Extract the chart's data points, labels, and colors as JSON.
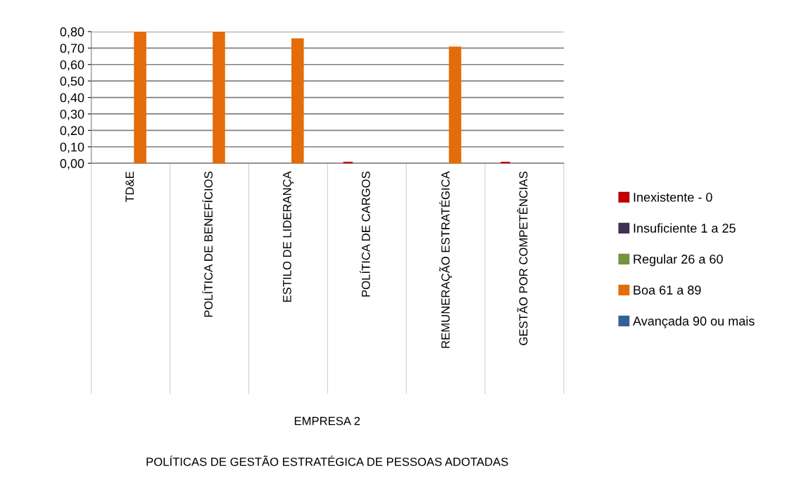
{
  "chart_data": {
    "type": "bar",
    "categories": [
      "TD&E",
      "POLÍTICA DE BENEFÍCIOS",
      "ESTILO DE LIDERANÇA",
      "POLÍTICA DE CARGOS",
      "REMUNERAÇÃO ESTRATÉGICA",
      "GESTÃO POR COMPETÊNCIAS"
    ],
    "series": [
      {
        "name": "Inexistente - 0",
        "color": "#c00000",
        "values": [
          null,
          null,
          null,
          0,
          null,
          0
        ]
      },
      {
        "name": "Insuficiente 1 a 25",
        "color": "#403151",
        "values": [
          null,
          null,
          null,
          null,
          null,
          null
        ]
      },
      {
        "name": "Regular 26 a 60",
        "color": "#77933c",
        "values": [
          null,
          null,
          null,
          null,
          null,
          null
        ]
      },
      {
        "name": "Boa 61 a 89",
        "color": "#e46c0a",
        "values": [
          0.8,
          0.8,
          0.75,
          null,
          0.7,
          null
        ]
      },
      {
        "name": "Avançada 90 ou mais",
        "color": "#376092",
        "values": [
          null,
          null,
          null,
          null,
          null,
          null
        ]
      }
    ],
    "annotations": [
      "EMPRESA 2",
      "POLÍTICAS DE GESTÃO ESTRATÉGICA DE PESSOAS ADOTADAS"
    ],
    "ylim": [
      0,
      0.8
    ],
    "yticks": [
      {
        "value": 0,
        "label": "0,00"
      },
      {
        "value": 0.1,
        "label": "0,10"
      },
      {
        "value": 0.2,
        "label": "0,20"
      },
      {
        "value": 0.3,
        "label": "0,30"
      },
      {
        "value": 0.4,
        "label": "0,40"
      },
      {
        "value": 0.5,
        "label": "0,50"
      },
      {
        "value": 0.6,
        "label": "0,60"
      },
      {
        "value": 0.7,
        "label": "0,70"
      },
      {
        "value": 0.8,
        "label": "0,80"
      }
    ],
    "grid": "y",
    "legend": "right"
  }
}
